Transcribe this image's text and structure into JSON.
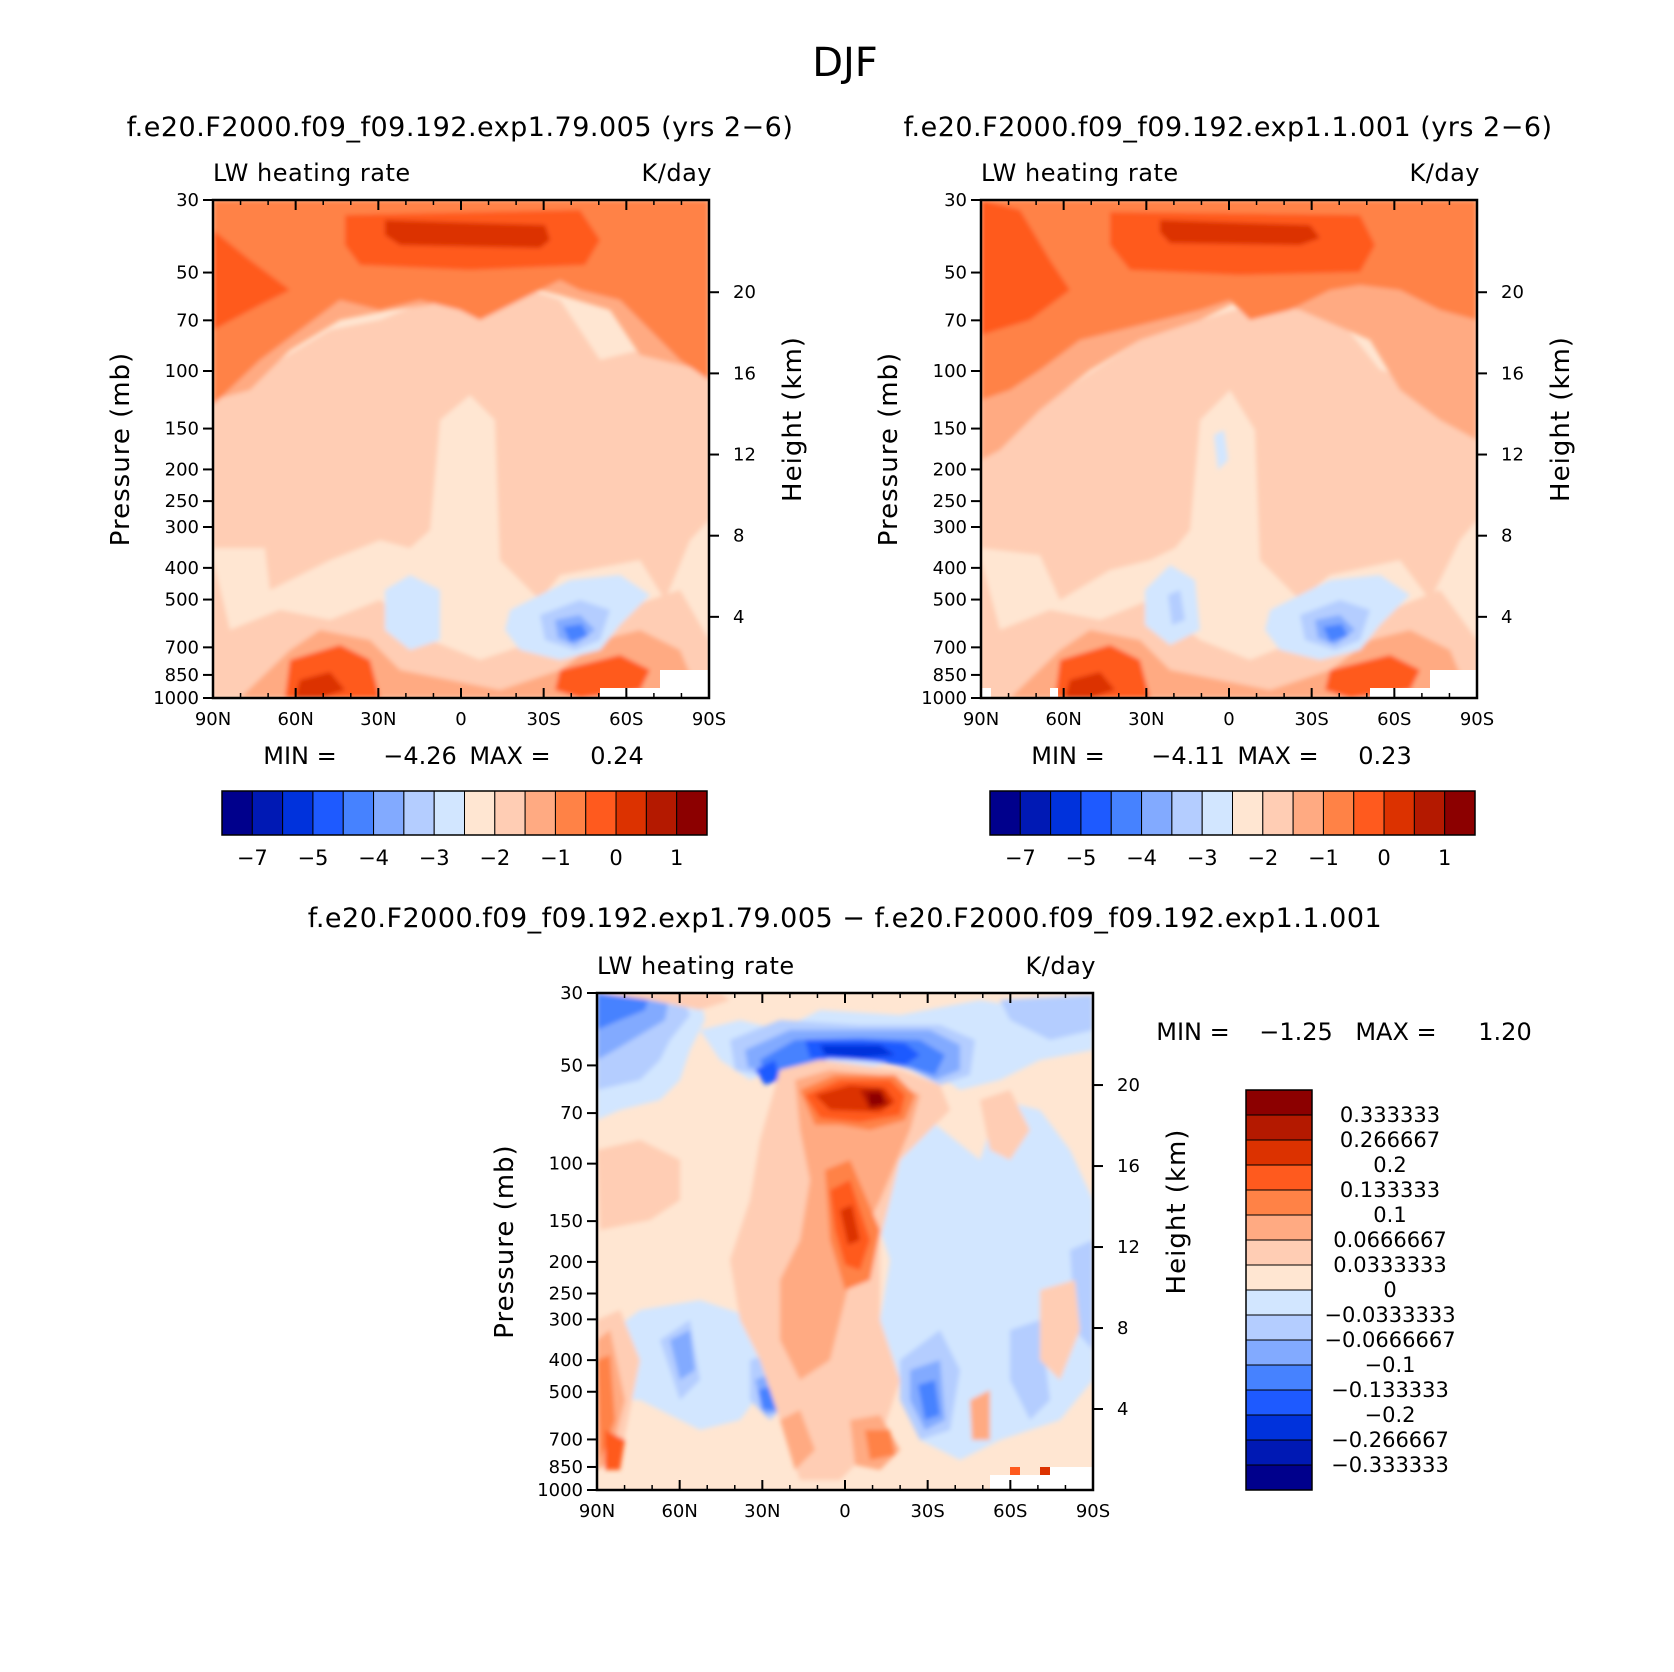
{
  "figure_title": "DJF",
  "colors": {
    "neg": [
      "#00008c",
      "#0019b4",
      "#0032dc",
      "#1e5aff",
      "#4682ff",
      "#82aaff",
      "#b4cdff",
      "#d2e6ff"
    ],
    "pos": [
      "#ffe6d2",
      "#ffcdb4",
      "#ffaa82",
      "#ff8246",
      "#ff5a1e",
      "#dc3200",
      "#b41900",
      "#8c0000"
    ]
  },
  "chart_data": [
    {
      "type": "contour",
      "id": "top-left",
      "title": "f.e20.F2000.f09_f09.192.exp1.79.005 (yrs 2−6)",
      "left_label": "LW heating rate",
      "right_label": "K/day",
      "ylabel": "Pressure (mb)",
      "ylabel_right": "Height (km)",
      "x_ticks": [
        "90N",
        "60N",
        "30N",
        "0",
        "30S",
        "60S",
        "90S"
      ],
      "y_ticks": [
        "30",
        "50",
        "70",
        "100",
        "150",
        "200",
        "250",
        "300",
        "400",
        "500",
        "700",
        "850",
        "1000"
      ],
      "y_ticks_right": [
        "20",
        "16",
        "12",
        "8",
        "4"
      ],
      "min_label": "MIN =",
      "min_value": "−4.26",
      "max_label": "MAX =",
      "max_value": "0.24",
      "colorbar_labels": [
        "−7",
        "−5",
        "−4",
        "−3",
        "−2",
        "−1",
        "0",
        "1"
      ]
    },
    {
      "type": "contour",
      "id": "top-right",
      "title": "f.e20.F2000.f09_f09.192.exp1.1.001 (yrs 2−6)",
      "left_label": "LW heating rate",
      "right_label": "K/day",
      "ylabel": "Pressure (mb)",
      "ylabel_right": "Height (km)",
      "x_ticks": [
        "90N",
        "60N",
        "30N",
        "0",
        "30S",
        "60S",
        "90S"
      ],
      "y_ticks": [
        "30",
        "50",
        "70",
        "100",
        "150",
        "200",
        "250",
        "300",
        "400",
        "500",
        "700",
        "850",
        "1000"
      ],
      "y_ticks_right": [
        "20",
        "16",
        "12",
        "8",
        "4"
      ],
      "min_label": "MIN =",
      "min_value": "−4.11",
      "max_label": "MAX =",
      "max_value": "0.23",
      "colorbar_labels": [
        "−7",
        "−5",
        "−4",
        "−3",
        "−2",
        "−1",
        "0",
        "1"
      ]
    },
    {
      "type": "contour",
      "id": "bottom-diff",
      "title": "f.e20.F2000.f09_f09.192.exp1.79.005 − f.e20.F2000.f09_f09.192.exp1.1.001",
      "left_label": "LW heating rate",
      "right_label": "K/day",
      "ylabel": "Pressure (mb)",
      "ylabel_right": "Height (km)",
      "x_ticks": [
        "90N",
        "60N",
        "30N",
        "0",
        "30S",
        "60S",
        "90S"
      ],
      "y_ticks": [
        "30",
        "50",
        "70",
        "100",
        "150",
        "200",
        "250",
        "300",
        "400",
        "500",
        "700",
        "850",
        "1000"
      ],
      "y_ticks_right": [
        "20",
        "16",
        "12",
        "8",
        "4"
      ],
      "min_label": "MIN =",
      "min_value": "−1.25",
      "max_label": "MAX =",
      "max_value": "1.20",
      "colorbar_labels": [
        "0.333333",
        "0.266667",
        "0.2",
        "0.133333",
        "0.1",
        "0.0666667",
        "0.0333333",
        "0",
        "−0.0333333",
        "−0.0666667",
        "−0.1",
        "−0.133333",
        "−0.2",
        "−0.266667",
        "−0.333333"
      ]
    }
  ]
}
